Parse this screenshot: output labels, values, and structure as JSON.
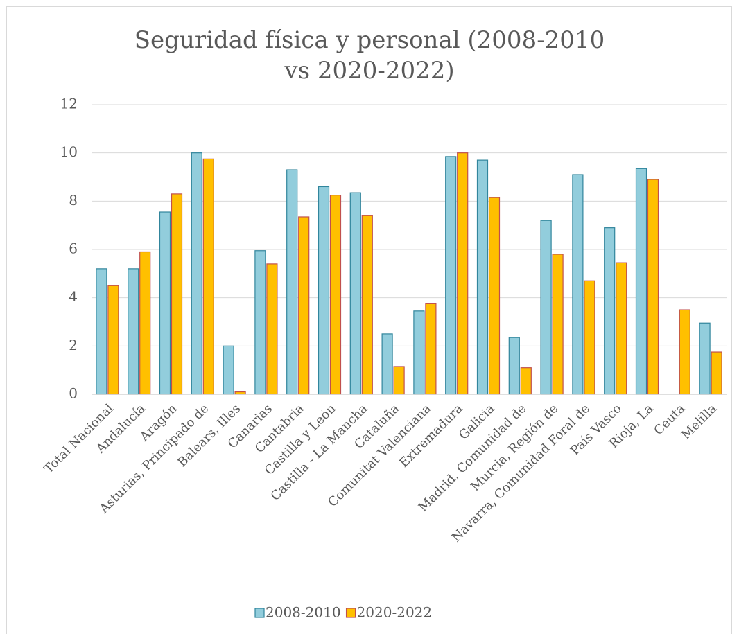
{
  "chart_data": {
    "type": "bar",
    "title": "Seguridad física y personal (2008-2010 vs 2020-2022)",
    "categories": [
      "Total Nacional",
      "Andalucía",
      "Aragón",
      "Asturias, Principado de",
      "Balears, Illes",
      "Canarias",
      "Cantabria",
      "Castilla y León",
      "Castilla - La Mancha",
      "Cataluña",
      "Comunitat Valenciana",
      "Extremadura",
      "Galicia",
      "Madrid, Comunidad de",
      "Murcia, Región de",
      "Navarra, Comunidad Foral de",
      "País Vasco",
      "Rioja, La",
      "Ceuta",
      "Melilla"
    ],
    "series": [
      {
        "name": "2008-2010",
        "color": "#92cddc",
        "edge": "#31859c",
        "values": [
          5.2,
          5.2,
          7.55,
          10.0,
          2.0,
          5.95,
          9.3,
          8.6,
          8.35,
          2.5,
          3.45,
          9.85,
          9.7,
          2.35,
          7.2,
          9.1,
          6.9,
          9.35,
          null,
          2.95
        ]
      },
      {
        "name": "2020-2022",
        "color": "#ffc000",
        "edge": "#c0504d",
        "values": [
          4.5,
          5.9,
          8.3,
          9.75,
          0.1,
          5.4,
          7.35,
          8.25,
          7.4,
          1.15,
          3.75,
          10.0,
          8.15,
          1.1,
          5.8,
          4.7,
          5.45,
          8.9,
          3.5,
          1.75
        ]
      }
    ],
    "ylim": [
      0,
      12
    ],
    "yticks": [
      0,
      2,
      4,
      6,
      8,
      10,
      12
    ],
    "grid": true,
    "legend": "bottom"
  }
}
